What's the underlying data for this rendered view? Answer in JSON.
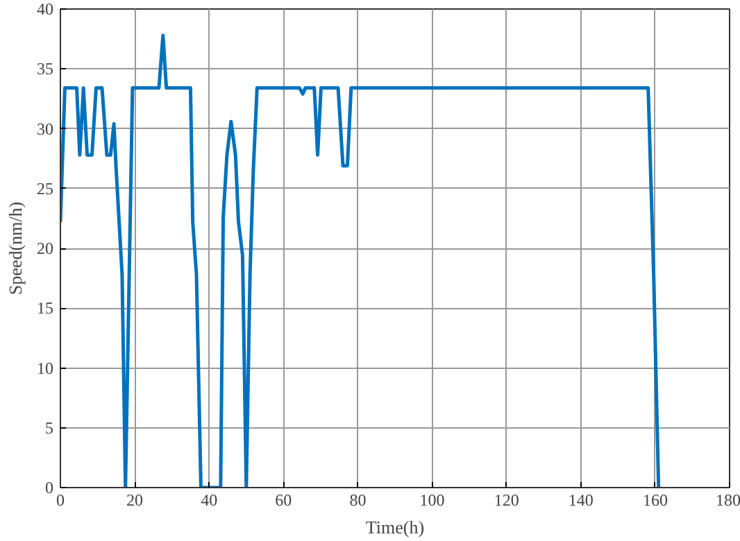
{
  "chart_data": {
    "type": "line",
    "xlabel": "Time(h)",
    "ylabel": "Speed(nm/h)",
    "xlim": [
      0,
      180
    ],
    "ylim": [
      0,
      40
    ],
    "xticks": [
      0,
      20,
      40,
      60,
      80,
      100,
      120,
      140,
      160,
      180
    ],
    "yticks": [
      0,
      5,
      10,
      15,
      20,
      25,
      30,
      35,
      40
    ],
    "grid": true,
    "line_style": "solid",
    "series": [
      {
        "color": "#0072bd",
        "x": [
          0,
          1.2,
          4.4,
          5.2,
          6.2,
          7.2,
          8.5,
          9.6,
          11.2,
          12.5,
          13.5,
          14.4,
          15,
          16.6,
          17.5,
          19.4,
          26.5,
          27.6,
          28.5,
          35,
          35.6,
          36.6,
          37.8,
          43.1,
          43.8,
          44.8,
          45.9,
          47.1,
          47.9,
          49,
          50,
          51,
          51.9,
          52.9,
          64.3,
          65.2,
          65.9,
          68.3,
          69.2,
          70.1,
          74.7,
          76,
          77.2,
          78.2,
          158.1,
          159.6,
          160.9
        ],
        "values": [
          22.2,
          33.4,
          33.4,
          27.8,
          33.4,
          27.8,
          27.8,
          33.4,
          33.4,
          27.8,
          27.8,
          30.4,
          26.6,
          17.8,
          0,
          33.4,
          33.4,
          37.8,
          33.4,
          33.4,
          22.2,
          17.8,
          0,
          0,
          22.6,
          27.8,
          30.6,
          27.8,
          22.2,
          19.4,
          0,
          17.8,
          26.6,
          33.4,
          33.4,
          32.9,
          33.4,
          33.4,
          27.8,
          33.4,
          33.4,
          26.9,
          26.9,
          33.4,
          33.4,
          17.6,
          0
        ]
      }
    ]
  }
}
